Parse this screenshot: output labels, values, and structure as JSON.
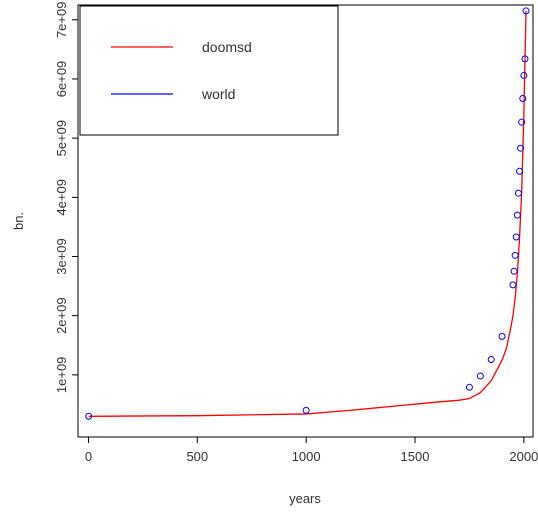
{
  "chart_data": {
    "type": "line",
    "xlabel": "years",
    "ylabel": "bn.",
    "xlim": [
      -48,
      2042
    ],
    "ylim": [
      -50000000,
      7250000000
    ],
    "x_ticks": [
      0,
      500,
      1000,
      1500,
      2000
    ],
    "x_tick_labels": [
      "0",
      "500",
      "1000",
      "1500",
      "2000"
    ],
    "y_ticks": [
      1000000000,
      2000000000,
      3000000000,
      4000000000,
      5000000000,
      6000000000,
      7000000000
    ],
    "y_tick_labels": [
      "1e+09",
      "2e+09",
      "3e+09",
      "4e+09",
      "5e+09",
      "6e+09",
      "7e+09"
    ],
    "grid": false,
    "legend_position": "top-left",
    "legend": [
      {
        "label": "doomsd",
        "color": "#ff0000",
        "style": "line"
      },
      {
        "label": "world",
        "color": "#0000ff",
        "style": "line"
      }
    ],
    "series": [
      {
        "name": "doomsd",
        "kind": "line",
        "color": "#ff0000",
        "x": [
          1,
          500,
          1000,
          1200,
          1400,
          1600,
          1700,
          1750,
          1800,
          1850,
          1900,
          1920,
          1940,
          1950,
          1960,
          1970,
          1980,
          1990,
          2000,
          2005,
          2010
        ],
        "y": [
          300000000,
          310000000,
          340000000,
          400000000,
          470000000,
          540000000,
          570000000,
          600000000,
          700000000,
          900000000,
          1250000000,
          1450000000,
          1800000000,
          2000000000,
          2300000000,
          2700000000,
          3300000000,
          4100000000,
          5400000000,
          6300000000,
          7150000000
        ]
      },
      {
        "name": "world",
        "kind": "points",
        "color": "#0000ff",
        "x": [
          1,
          1000,
          1750,
          1800,
          1850,
          1900,
          1950,
          1955,
          1960,
          1965,
          1970,
          1975,
          1980,
          1985,
          1990,
          1995,
          2000,
          2005,
          2010
        ],
        "y": [
          300000000,
          400000000,
          790000000,
          980000000,
          1260000000,
          1650000000,
          2520000000,
          2750000000,
          3020000000,
          3330000000,
          3700000000,
          4070000000,
          4440000000,
          4830000000,
          5270000000,
          5670000000,
          6060000000,
          6340000000,
          7150000000
        ]
      }
    ]
  }
}
